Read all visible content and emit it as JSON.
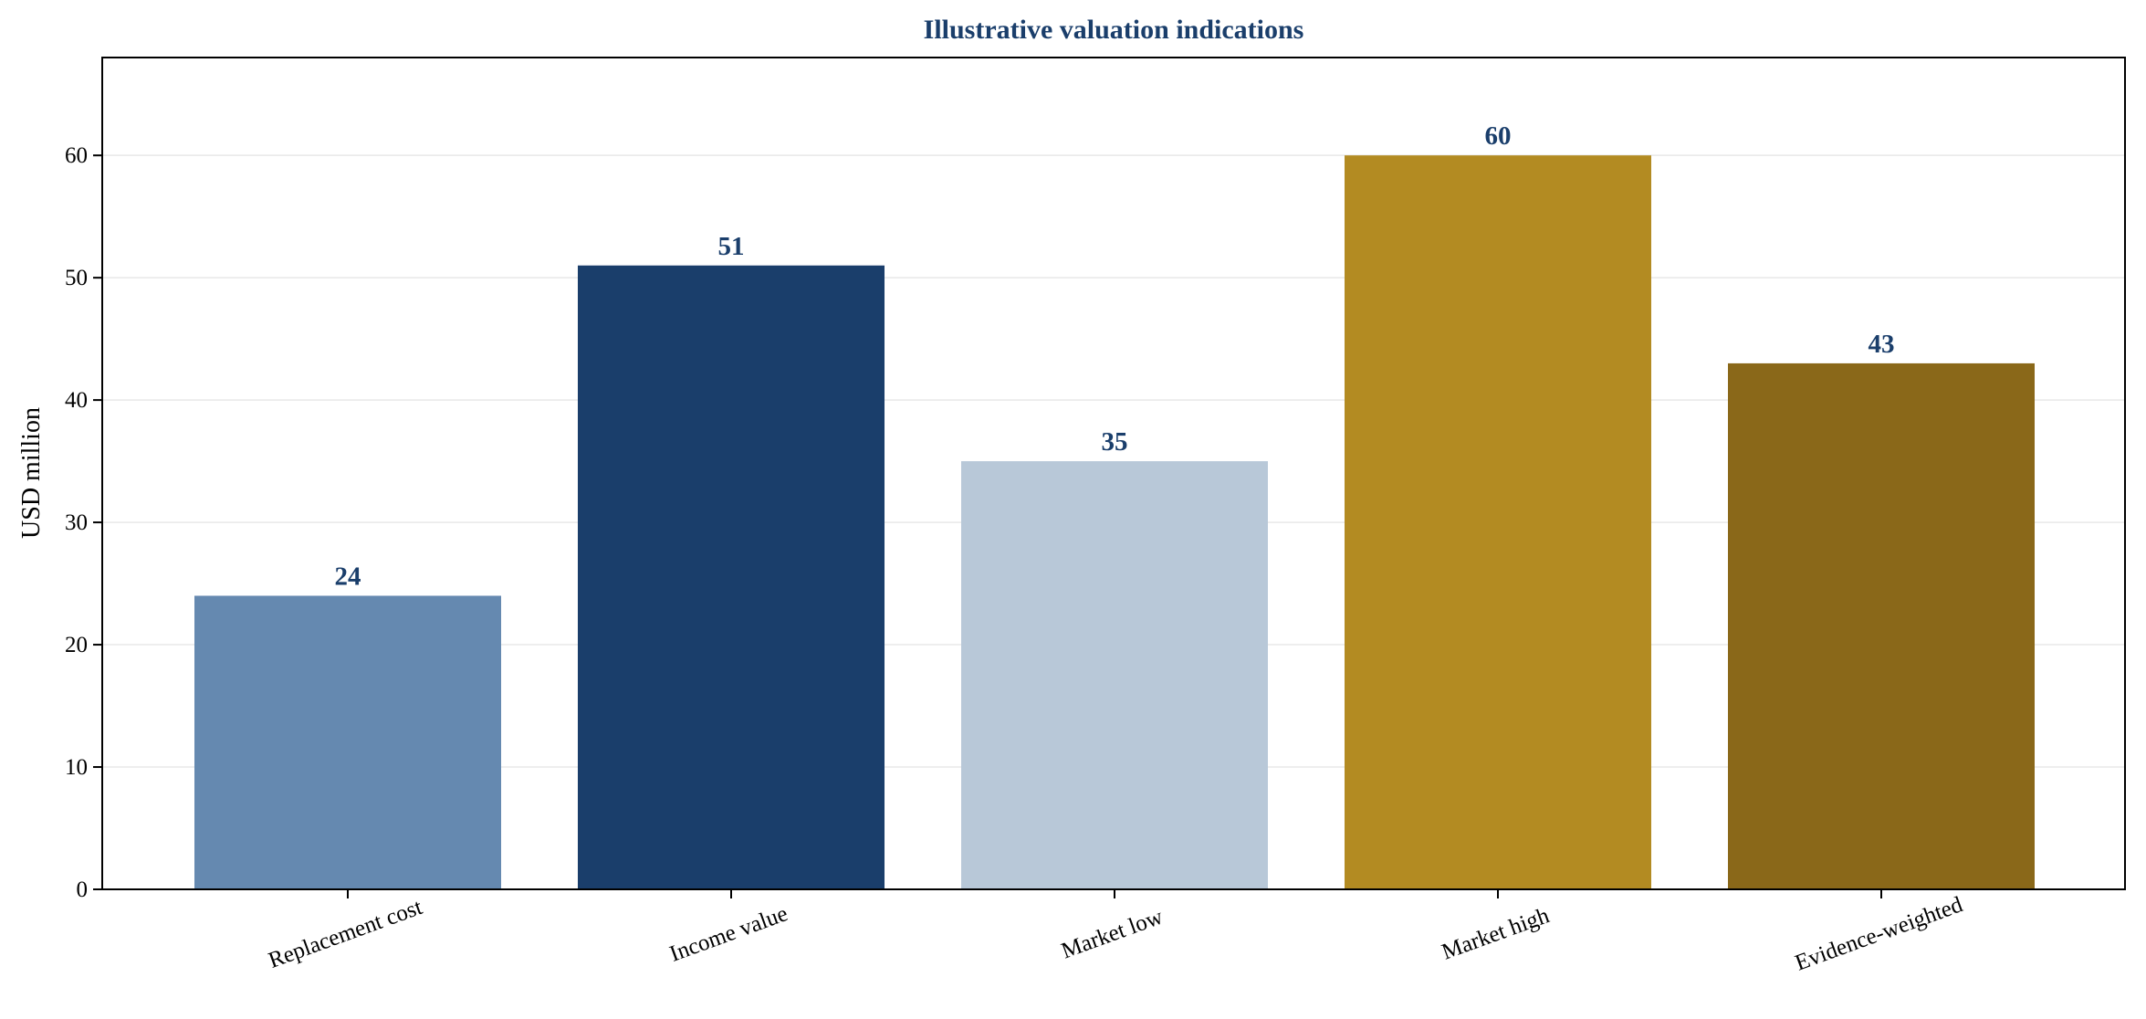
{
  "chart_data": {
    "type": "bar",
    "title": "Illustrative valuation indications",
    "xlabel": "",
    "ylabel": "USD million",
    "categories": [
      "Replacement cost",
      "Income value",
      "Market low",
      "Market high",
      "Evidence-weighted"
    ],
    "values": [
      24,
      51,
      35,
      60,
      43
    ],
    "value_labels": [
      "24",
      "51",
      "35",
      "60",
      "43"
    ],
    "bar_colors": [
      "#6589b0",
      "#1a3e6b",
      "#b8c8d8",
      "#b38b22",
      "#8a6819"
    ],
    "ylim": [
      0,
      68
    ],
    "yticks": [
      0,
      10,
      20,
      30,
      40,
      50,
      60
    ],
    "grid": "horizontal",
    "legend": "none"
  },
  "colors": {
    "title": "#1a3e6b",
    "value_label": "#1a3e6b",
    "grid": "#e8e8e8",
    "axis": "#000000"
  }
}
